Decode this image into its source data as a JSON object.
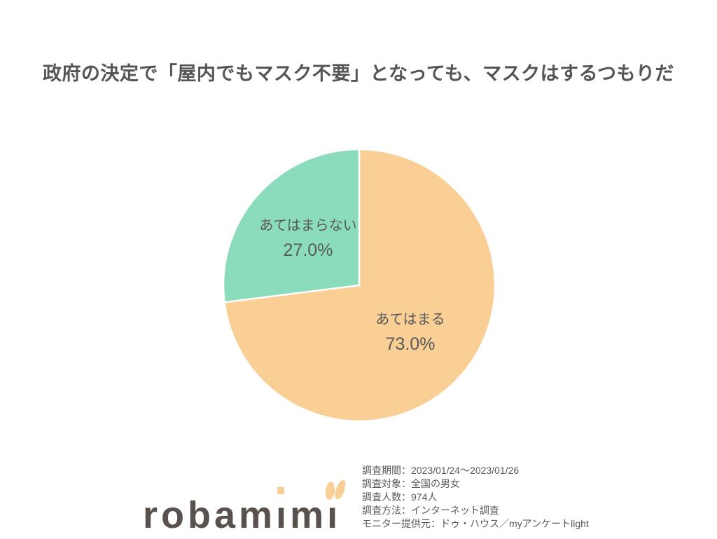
{
  "title": "政府の決定で「屋内でもマスク不要」となっても、マスクはするつもりだ",
  "chart_data": {
    "type": "pie",
    "title": "政府の決定で「屋内でもマスク不要」となっても、マスクはするつもりだ",
    "start_angle": "12-o-clock, clockwise",
    "legend_position": "labels inside slices",
    "label_color": "#595959",
    "slices": [
      {
        "label": "あてはまる",
        "value": 73.0,
        "pct_label": "73.0%",
        "color": "#F9CF96"
      },
      {
        "label": "あてはまらない",
        "value": 27.0,
        "pct_label": "27.0%",
        "color": "#8BDCBC"
      }
    ]
  },
  "logo": {
    "name": "robamimi",
    "part1": "robam",
    "dotless_i": "ı",
    "part2": "m",
    "text_color": "#59514E",
    "accent_color": "#F9CF96"
  },
  "survey": {
    "lines": [
      "調査期間：2023/01/24～2023/01/26",
      "調査対象：全国の男女",
      "調査人数：974人",
      "調査方法：インターネット調査",
      "モニター提供元：ドゥ・ハウス／myアンケートlight"
    ]
  }
}
